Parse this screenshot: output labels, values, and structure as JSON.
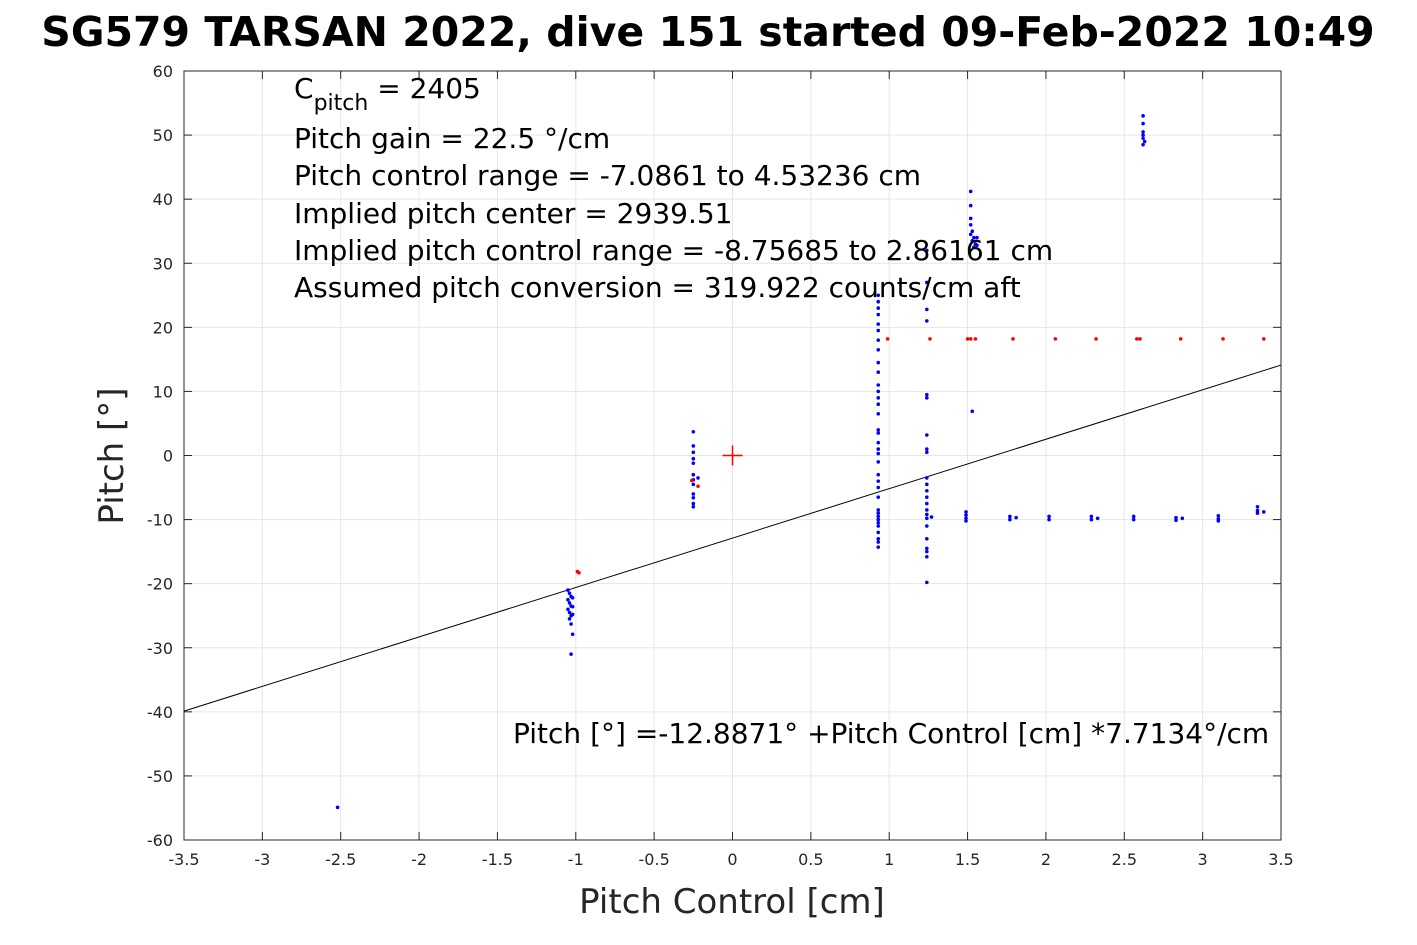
{
  "chart_data": {
    "type": "scatter",
    "title": "SG579 TARSAN 2022, dive 151 started 09-Feb-2022 10:49",
    "xlabel": "Pitch Control [cm]",
    "ylabel": "Pitch [°]",
    "xlim": [
      -3.5,
      3.5
    ],
    "ylim": [
      -60,
      60
    ],
    "xticks": [
      "-3.5",
      "-3",
      "-2.5",
      "-2",
      "-1.5",
      "-1",
      "-0.5",
      "0",
      "0.5",
      "1",
      "1.5",
      "2",
      "2.5",
      "3",
      "3.5"
    ],
    "yticks": [
      "60",
      "50",
      "40",
      "30",
      "20",
      "10",
      "0",
      "-10",
      "-20",
      "-30",
      "-40",
      "-50",
      "-60"
    ],
    "grid": true,
    "annotations": {
      "cpitch_prefix": "C",
      "cpitch_sub": "pitch",
      "cpitch_value": " = 2405",
      "gain": "Pitch gain = 22.5 °/cm",
      "range": "Pitch control range = -7.0861 to 4.53236 cm",
      "center": "Implied pitch center = 2939.51",
      "implied_range": "Implied pitch control range = -8.75685 to 2.86161 cm",
      "conversion": "Assumed pitch conversion = 319.922 counts/cm aft",
      "fit_equation": "Pitch [°] =-12.8871° +Pitch Control [cm] *7.7134°/cm"
    },
    "fit_line": {
      "intercept": -12.8871,
      "slope": 7.7134,
      "color": "#000000"
    },
    "center_marker": {
      "x": 0,
      "y": 0,
      "color": "#ff0000"
    },
    "series": [
      {
        "color": "#0000ff",
        "points": [
          [
            -2.52,
            -54.9
          ],
          [
            -1.05,
            -21.0
          ],
          [
            -1.04,
            -21.5
          ],
          [
            -1.03,
            -22.0
          ],
          [
            -1.05,
            -22.5
          ],
          [
            -1.04,
            -23.0
          ],
          [
            -1.03,
            -23.5
          ],
          [
            -1.05,
            -24.0
          ],
          [
            -1.04,
            -24.5
          ],
          [
            -1.03,
            -25.0
          ],
          [
            -1.04,
            -25.5
          ],
          [
            -1.03,
            -26.3
          ],
          [
            -1.02,
            -27.9
          ],
          [
            -1.03,
            -31.0
          ],
          [
            -1.02,
            -22.2
          ],
          [
            -1.02,
            -23.6
          ],
          [
            -1.02,
            -24.8
          ],
          [
            -0.25,
            3.7
          ],
          [
            -0.25,
            1.5
          ],
          [
            -0.25,
            0.5
          ],
          [
            -0.25,
            -0.5
          ],
          [
            -0.25,
            -1.2
          ],
          [
            -0.25,
            -3.0
          ],
          [
            -0.25,
            -3.8
          ],
          [
            -0.25,
            -4.5
          ],
          [
            -0.25,
            -6.0
          ],
          [
            -0.25,
            -6.6
          ],
          [
            -0.25,
            -7.5
          ],
          [
            -0.25,
            -8.0
          ],
          [
            -0.22,
            -3.5
          ],
          [
            0.93,
            25.0
          ],
          [
            0.93,
            24.0
          ],
          [
            0.93,
            23.0
          ],
          [
            0.93,
            22.0
          ],
          [
            0.93,
            20.5
          ],
          [
            0.93,
            19.5
          ],
          [
            0.93,
            18.0
          ],
          [
            0.93,
            16.5
          ],
          [
            0.93,
            14.5
          ],
          [
            0.93,
            13.0
          ],
          [
            0.93,
            11.0
          ],
          [
            0.93,
            10.0
          ],
          [
            0.93,
            9.0
          ],
          [
            0.93,
            8.0
          ],
          [
            0.93,
            6.5
          ],
          [
            0.93,
            4.0
          ],
          [
            0.93,
            3.5
          ],
          [
            0.93,
            2.0
          ],
          [
            0.93,
            1.0
          ],
          [
            0.93,
            0.3
          ],
          [
            0.93,
            -1.0
          ],
          [
            0.93,
            -3.0
          ],
          [
            0.93,
            -4.0
          ],
          [
            0.93,
            -5.0
          ],
          [
            0.93,
            -6.5
          ],
          [
            0.93,
            -8.5
          ],
          [
            0.93,
            -9.0
          ],
          [
            0.93,
            -9.5
          ],
          [
            0.93,
            -10.0
          ],
          [
            0.93,
            -10.5
          ],
          [
            0.93,
            -11.0
          ],
          [
            0.93,
            -12.0
          ],
          [
            0.93,
            -13.0
          ],
          [
            0.93,
            -13.5
          ],
          [
            0.93,
            -14.3
          ],
          [
            1.24,
            32.0
          ],
          [
            1.24,
            27.0
          ],
          [
            1.24,
            22.8
          ],
          [
            1.24,
            21.0
          ],
          [
            1.24,
            9.5
          ],
          [
            1.24,
            9.0
          ],
          [
            1.24,
            3.2
          ],
          [
            1.24,
            1.0
          ],
          [
            1.24,
            0.5
          ],
          [
            1.24,
            -3.5
          ],
          [
            1.24,
            -4.5
          ],
          [
            1.24,
            -5.5
          ],
          [
            1.24,
            -6.5
          ],
          [
            1.24,
            -7.5
          ],
          [
            1.24,
            -8.5
          ],
          [
            1.24,
            -9.2
          ],
          [
            1.24,
            -9.8
          ],
          [
            1.24,
            -11.0
          ],
          [
            1.24,
            -13.0
          ],
          [
            1.24,
            -14.5
          ],
          [
            1.24,
            -15.0
          ],
          [
            1.24,
            -15.8
          ],
          [
            1.24,
            -19.8
          ],
          [
            1.27,
            -9.6
          ],
          [
            1.52,
            41.2
          ],
          [
            1.52,
            39.0
          ],
          [
            1.52,
            37.0
          ],
          [
            1.52,
            36.0
          ],
          [
            1.53,
            35.0
          ],
          [
            1.52,
            34.5
          ],
          [
            1.54,
            34.0
          ],
          [
            1.53,
            33.5
          ],
          [
            1.55,
            33.0
          ],
          [
            1.54,
            32.5
          ],
          [
            1.56,
            34.0
          ],
          [
            1.56,
            32.8
          ],
          [
            1.53,
            6.9
          ],
          [
            1.49,
            -8.8
          ],
          [
            1.49,
            -9.3
          ],
          [
            1.49,
            -9.8
          ],
          [
            1.49,
            -10.2
          ],
          [
            1.77,
            -9.5
          ],
          [
            1.77,
            -10.0
          ],
          [
            1.81,
            -9.7
          ],
          [
            2.02,
            -9.5
          ],
          [
            2.02,
            -10.0
          ],
          [
            2.29,
            -9.5
          ],
          [
            2.29,
            -10.0
          ],
          [
            2.33,
            -9.8
          ],
          [
            2.56,
            -9.5
          ],
          [
            2.56,
            -10.0
          ],
          [
            2.83,
            -9.7
          ],
          [
            2.83,
            -10.1
          ],
          [
            2.87,
            -9.8
          ],
          [
            3.1,
            -9.4
          ],
          [
            3.1,
            -9.9
          ],
          [
            3.1,
            -10.2
          ],
          [
            3.35,
            -8.0
          ],
          [
            3.35,
            -8.6
          ],
          [
            3.35,
            -9.0
          ],
          [
            3.39,
            -8.8
          ],
          [
            2.62,
            53.0
          ],
          [
            2.62,
            51.8
          ],
          [
            2.62,
            50.5
          ],
          [
            2.62,
            50.0
          ],
          [
            2.62,
            49.5
          ],
          [
            2.63,
            49.0
          ],
          [
            2.62,
            48.5
          ]
        ]
      },
      {
        "color": "#ff0000",
        "points": [
          [
            -0.99,
            -18.1
          ],
          [
            -0.98,
            -18.3
          ],
          [
            -0.22,
            -4.8
          ],
          [
            -0.26,
            -3.9
          ],
          [
            0.99,
            18.2
          ],
          [
            1.26,
            18.2
          ],
          [
            1.5,
            18.2
          ],
          [
            1.52,
            18.2
          ],
          [
            1.55,
            18.2
          ],
          [
            1.79,
            18.2
          ],
          [
            2.06,
            18.2
          ],
          [
            2.32,
            18.2
          ],
          [
            2.58,
            18.2
          ],
          [
            2.6,
            18.2
          ],
          [
            2.86,
            18.2
          ],
          [
            3.13,
            18.2
          ],
          [
            3.39,
            18.2
          ]
        ]
      }
    ]
  }
}
